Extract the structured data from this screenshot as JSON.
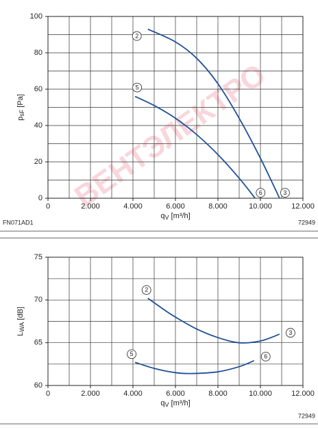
{
  "chart_data": [
    {
      "type": "line",
      "x_label": {
        "main": "q",
        "sub": "V",
        "unit": " [m³/h]"
      },
      "y_label": {
        "main": "p",
        "sub": "sF",
        "unit": " [Pa]"
      },
      "footer_left": "FN071AD1",
      "footer_right": "72949",
      "xlim": [
        0,
        12000
      ],
      "ylim": [
        0,
        100
      ],
      "xticks": [
        0,
        {
          "value": 2000,
          "label": "2.000"
        },
        {
          "value": 4000,
          "label": "4.000"
        },
        {
          "value": 6000,
          "label": "6.000"
        },
        {
          "value": 8000,
          "label": "8.000"
        },
        {
          "value": 10000,
          "label": "10.000"
        },
        {
          "value": 12000,
          "label": "12.000"
        }
      ],
      "yticks": [
        0,
        20,
        40,
        60,
        80,
        100
      ],
      "xgrid": [
        1000,
        2000,
        3000,
        4000,
        5000,
        6000,
        7000,
        8000,
        9000,
        10000,
        11000
      ],
      "ygrid": [
        10,
        20,
        30,
        40,
        50,
        60,
        70,
        80,
        90
      ],
      "series": [
        {
          "start_label": "2",
          "end_label": "3",
          "color": "#1f4f96",
          "x": [
            4700,
            6000,
            7000,
            8000,
            9000,
            10000,
            10900
          ],
          "values": [
            93,
            86,
            77,
            63,
            44,
            22,
            0
          ]
        },
        {
          "start_label": "5",
          "end_label": "6",
          "color": "#1f4f96",
          "x": [
            4100,
            5000,
            6000,
            7000,
            8000,
            9000,
            9750
          ],
          "values": [
            56,
            51,
            44,
            35,
            24,
            11,
            0
          ]
        }
      ],
      "watermark": "ВЕНТЭЛЕКТРО"
    },
    {
      "type": "line",
      "x_label": {
        "main": "q",
        "sub": "V",
        "unit": " [m³/h]"
      },
      "y_label": {
        "main": "L",
        "sub": "WA",
        "unit": " [dB]"
      },
      "footer_right": "72949",
      "xlim": [
        0,
        12000
      ],
      "ylim": [
        60,
        75
      ],
      "xticks": [
        0,
        {
          "value": 2000,
          "label": "2.000"
        },
        {
          "value": 4000,
          "label": "4.000"
        },
        {
          "value": 6000,
          "label": "6.000"
        },
        {
          "value": 8000,
          "label": "8.000"
        },
        {
          "value": 10000,
          "label": "10.000"
        },
        {
          "value": 12000,
          "label": "12.000"
        }
      ],
      "yticks": [
        60,
        65,
        70,
        75
      ],
      "xgrid": [
        1000,
        2000,
        3000,
        4000,
        5000,
        6000,
        7000,
        8000,
        9000,
        10000,
        11000
      ],
      "ygrid": [
        62.5,
        65,
        67.5,
        70,
        72.5
      ],
      "series": [
        {
          "start_label": "2",
          "end_label": "3",
          "color": "#1f4f96",
          "x": [
            4700,
            5500,
            6000,
            7000,
            8000,
            9000,
            10000,
            10900
          ],
          "values": [
            70.2,
            68.8,
            68.0,
            66.6,
            65.6,
            65.0,
            65.2,
            66.0
          ]
        },
        {
          "start_label": "5",
          "end_label": "6",
          "color": "#1f4f96",
          "x": [
            4100,
            5000,
            6000,
            6800,
            8000,
            9000,
            9700
          ],
          "values": [
            62.7,
            62.0,
            61.5,
            61.4,
            61.6,
            62.2,
            62.9
          ]
        }
      ]
    }
  ]
}
